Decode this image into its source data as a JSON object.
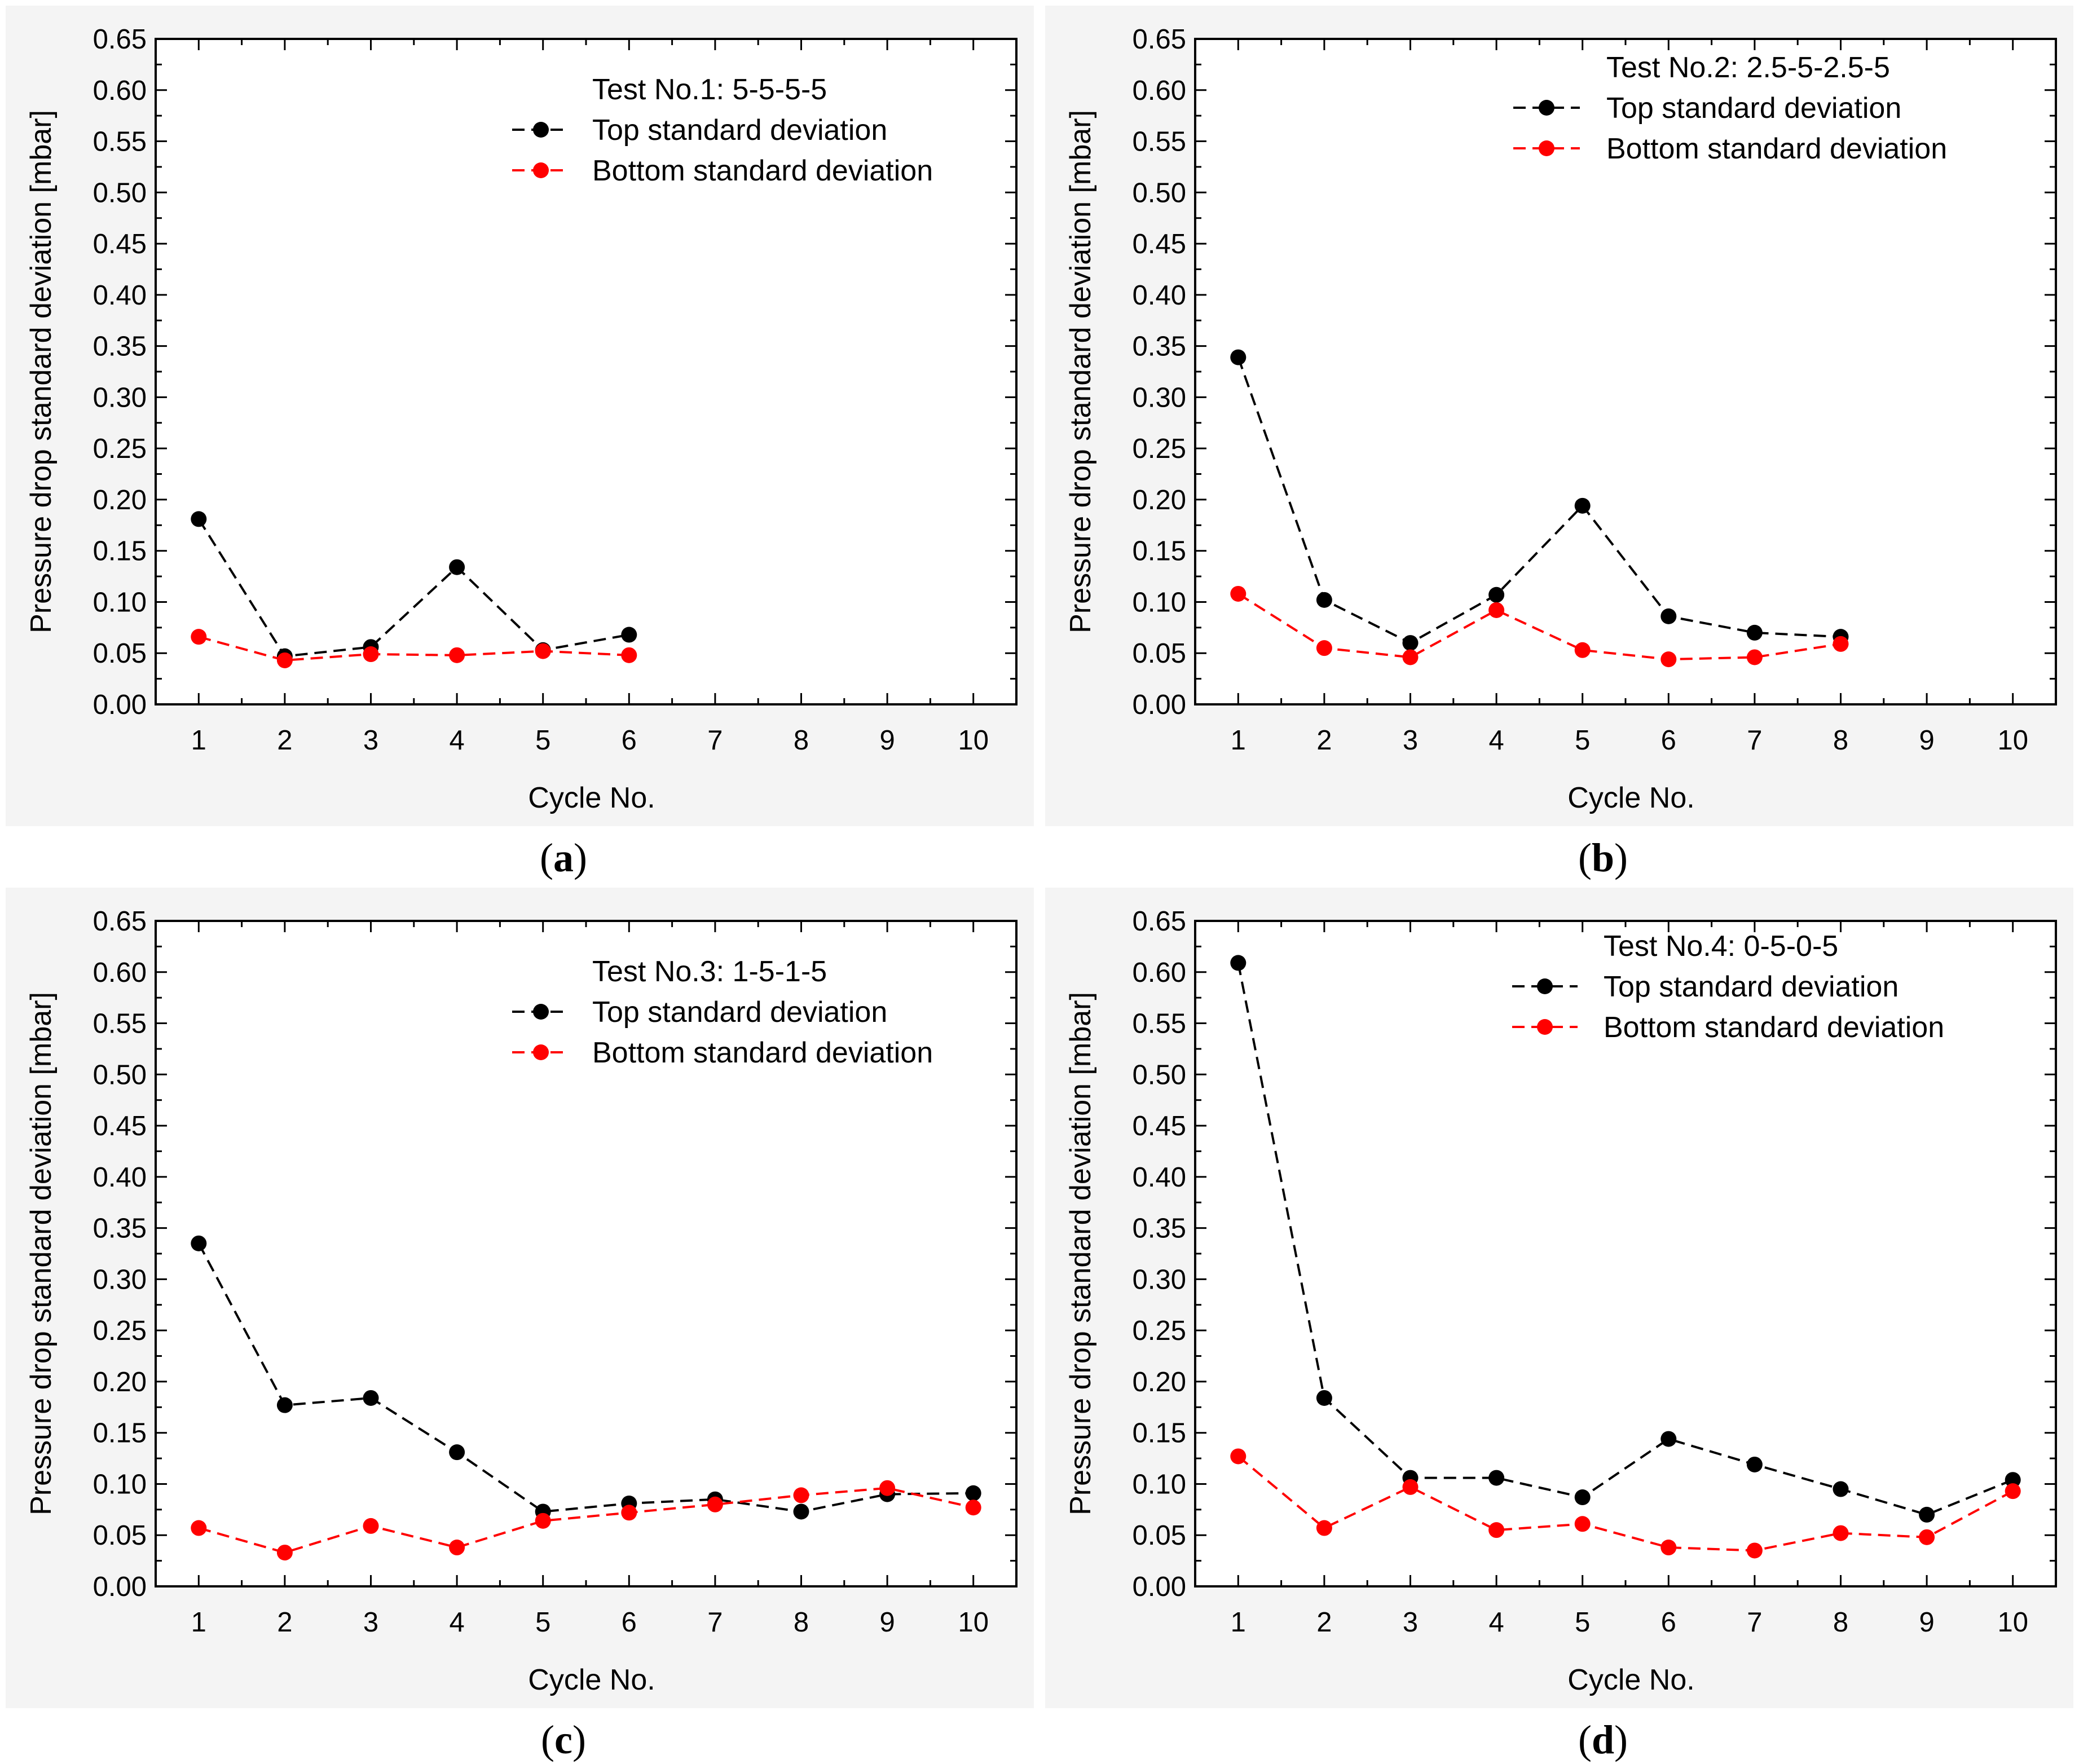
{
  "figure": {
    "colors": {
      "top": "#000000",
      "bottom": "#ff0000",
      "panel_background": "#f4f4f4"
    }
  },
  "chart_data": [
    {
      "type": "line",
      "panel_label": "(a)",
      "legend_title": "Test No.1: 5-5-5-5",
      "xlabel": "Cycle No.",
      "ylabel": "Pressure drop standard deviation [mbar]",
      "xlim": [
        0.5,
        10.5
      ],
      "ylim": [
        0,
        0.65
      ],
      "xticks": [
        "1",
        "2",
        "3",
        "4",
        "5",
        "6",
        "7",
        "8",
        "9",
        "10"
      ],
      "yticks": [
        "0.00",
        "0.05",
        "0.10",
        "0.15",
        "0.20",
        "0.25",
        "0.30",
        "0.35",
        "0.40",
        "0.45",
        "0.50",
        "0.55",
        "0.60",
        "0.65"
      ],
      "series": [
        {
          "name": "Top standard deviation",
          "color": "#000000",
          "x": [
            1,
            2,
            3,
            4,
            5,
            6
          ],
          "values": [
            0.181,
            0.047,
            0.056,
            0.134,
            0.053,
            0.068
          ]
        },
        {
          "name": "Bottom standard deviation",
          "color": "#ff0000",
          "x": [
            1,
            2,
            3,
            4,
            5,
            6
          ],
          "values": [
            0.066,
            0.043,
            0.049,
            0.048,
            0.052,
            0.048
          ]
        }
      ]
    },
    {
      "type": "line",
      "panel_label": "(b)",
      "legend_title": "Test No.2: 2.5-5-2.5-5",
      "xlabel": "Cycle No.",
      "ylabel": "Pressure drop standard deviation [mbar]",
      "xlim": [
        0.5,
        10.5
      ],
      "ylim": [
        0,
        0.65
      ],
      "xticks": [
        "1",
        "2",
        "3",
        "4",
        "5",
        "6",
        "7",
        "8",
        "9",
        "10"
      ],
      "yticks": [
        "0.00",
        "0.05",
        "0.10",
        "0.15",
        "0.20",
        "0.25",
        "0.30",
        "0.35",
        "0.40",
        "0.45",
        "0.50",
        "0.55",
        "0.60",
        "0.65"
      ],
      "series": [
        {
          "name": "Top standard deviation",
          "color": "#000000",
          "x": [
            1,
            2,
            3,
            4,
            5,
            6,
            7,
            8
          ],
          "values": [
            0.339,
            0.102,
            0.06,
            0.107,
            0.194,
            0.086,
            0.07,
            0.066
          ]
        },
        {
          "name": "Bottom standard deviation",
          "color": "#ff0000",
          "x": [
            1,
            2,
            3,
            4,
            5,
            6,
            7,
            8
          ],
          "values": [
            0.108,
            0.055,
            0.046,
            0.092,
            0.053,
            0.044,
            0.046,
            0.059
          ]
        }
      ]
    },
    {
      "type": "line",
      "panel_label": "(c)",
      "legend_title": "Test No.3: 1-5-1-5",
      "xlabel": "Cycle No.",
      "ylabel": "Pressure drop standard deviation [mbar]",
      "xlim": [
        0.5,
        10.5
      ],
      "ylim": [
        0,
        0.65
      ],
      "xticks": [
        "1",
        "2",
        "3",
        "4",
        "5",
        "6",
        "7",
        "8",
        "9",
        "10"
      ],
      "yticks": [
        "0.00",
        "0.05",
        "0.10",
        "0.15",
        "0.20",
        "0.25",
        "0.30",
        "0.35",
        "0.40",
        "0.45",
        "0.50",
        "0.55",
        "0.60",
        "0.65"
      ],
      "series": [
        {
          "name": "Top standard deviation",
          "color": "#000000",
          "x": [
            1,
            2,
            3,
            4,
            5,
            6,
            7,
            8,
            9,
            10
          ],
          "values": [
            0.335,
            0.177,
            0.184,
            0.131,
            0.073,
            0.081,
            0.085,
            0.073,
            0.09,
            0.091
          ]
        },
        {
          "name": "Bottom standard deviation",
          "color": "#ff0000",
          "x": [
            1,
            2,
            3,
            4,
            5,
            6,
            7,
            8,
            9,
            10
          ],
          "values": [
            0.057,
            0.033,
            0.059,
            0.038,
            0.064,
            0.072,
            0.08,
            0.089,
            0.096,
            0.077
          ]
        }
      ]
    },
    {
      "type": "line",
      "panel_label": "(d)",
      "legend_title": "Test No.4: 0-5-0-5",
      "xlabel": "Cycle No.",
      "ylabel": "Pressure drop standard deviation [mbar]",
      "xlim": [
        0.5,
        10.5
      ],
      "ylim": [
        0,
        0.65
      ],
      "xticks": [
        "1",
        "2",
        "3",
        "4",
        "5",
        "6",
        "7",
        "8",
        "9",
        "10"
      ],
      "yticks": [
        "0.00",
        "0.05",
        "0.10",
        "0.15",
        "0.20",
        "0.25",
        "0.30",
        "0.35",
        "0.40",
        "0.45",
        "0.50",
        "0.55",
        "0.60",
        "0.65"
      ],
      "series": [
        {
          "name": "Top standard deviation",
          "color": "#000000",
          "x": [
            1,
            2,
            3,
            4,
            5,
            6,
            7,
            8,
            9,
            10
          ],
          "values": [
            0.609,
            0.184,
            0.106,
            0.106,
            0.087,
            0.144,
            0.119,
            0.095,
            0.07,
            0.104
          ]
        },
        {
          "name": "Bottom standard deviation",
          "color": "#ff0000",
          "x": [
            1,
            2,
            3,
            4,
            5,
            6,
            7,
            8,
            9,
            10
          ],
          "values": [
            0.127,
            0.057,
            0.097,
            0.055,
            0.061,
            0.038,
            0.035,
            0.052,
            0.048,
            0.093
          ]
        }
      ]
    }
  ]
}
